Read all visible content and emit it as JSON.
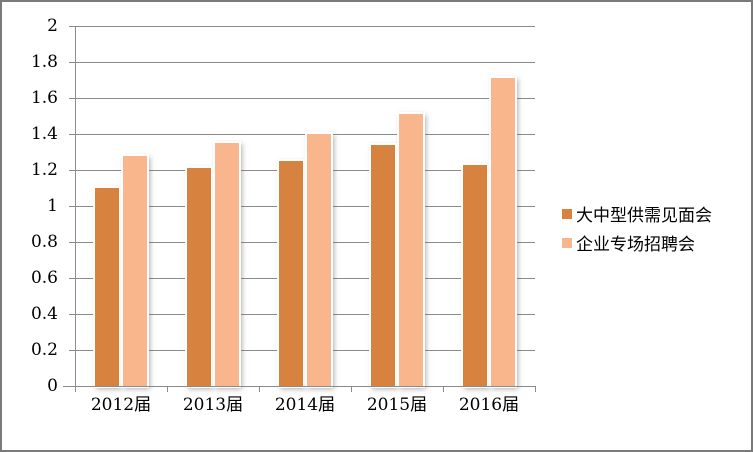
{
  "frame": {
    "background": "#ffffff",
    "border_color": "#7a7a7a"
  },
  "chart_data": {
    "type": "bar",
    "title": "",
    "categories": [
      "2012届",
      "2013届",
      "2014届",
      "2015届",
      "2016届"
    ],
    "series": [
      {
        "name": "大中型供需见面会",
        "color": "#D8823F",
        "values": [
          1.1,
          1.21,
          1.25,
          1.34,
          1.23
        ]
      },
      {
        "name": "企业专场招聘会",
        "color": "#F9B68C",
        "values": [
          1.28,
          1.35,
          1.4,
          1.51,
          1.71
        ]
      }
    ],
    "xlabel": "",
    "ylabel": "",
    "ylim": [
      0,
      2
    ],
    "y_tick_step": 0.2,
    "y_tick_labels": [
      "0",
      "0.2",
      "0.4",
      "0.6",
      "0.8",
      "1",
      "1.2",
      "1.4",
      "1.6",
      "1.8",
      "2"
    ],
    "grid": true,
    "legend_position": "right",
    "colors": {
      "gridline": "#8a8a8a",
      "axis": "#8a8a8a",
      "text": "#000000",
      "bar_outline": "#ffffff",
      "bar_shadow": "rgba(110,110,110,0.55)"
    }
  }
}
